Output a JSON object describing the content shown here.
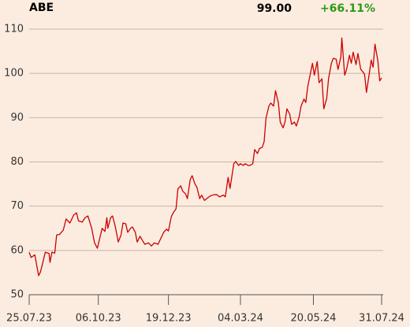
{
  "chart_data": {
    "type": "line",
    "title": "ABE",
    "last_price": "99.00",
    "change": "+66.11%",
    "color": "#cc0000",
    "change_color": "#2a9a14",
    "grid": true,
    "x": [
      "2023-07-25",
      "2023-07-27",
      "2023-07-31",
      "2023-08-02",
      "2023-08-04",
      "2023-08-06",
      "2023-08-09",
      "2023-08-11",
      "2023-08-15",
      "2023-08-16",
      "2023-08-18",
      "2023-08-21",
      "2023-08-23",
      "2023-08-26",
      "2023-08-30",
      "2023-09-02",
      "2023-09-06",
      "2023-09-10",
      "2023-09-13",
      "2023-09-15",
      "2023-09-19",
      "2023-09-22",
      "2023-09-25",
      "2023-09-29",
      "2023-10-02",
      "2023-10-05",
      "2023-10-07",
      "2023-10-10",
      "2023-10-13",
      "2023-10-15",
      "2023-10-16",
      "2023-10-19",
      "2023-10-21",
      "2023-10-24",
      "2023-10-27",
      "2023-10-30",
      "2023-11-01",
      "2023-11-04",
      "2023-11-06",
      "2023-11-09",
      "2023-11-11",
      "2023-11-14",
      "2023-11-16",
      "2023-11-19",
      "2023-11-22",
      "2023-11-24",
      "2023-11-28",
      "2023-12-01",
      "2023-12-04",
      "2023-12-08",
      "2023-12-12",
      "2023-12-14",
      "2023-12-17",
      "2023-12-19",
      "2023-12-22",
      "2023-12-24",
      "2023-12-27",
      "2023-12-29",
      "2024-01-01",
      "2024-01-03",
      "2024-01-06",
      "2024-01-08",
      "2024-01-11",
      "2024-01-13",
      "2024-01-16",
      "2024-01-18",
      "2024-01-21",
      "2024-01-23",
      "2024-01-26",
      "2024-01-29",
      "2024-02-01",
      "2024-02-05",
      "2024-02-08",
      "2024-02-11",
      "2024-02-15",
      "2024-02-17",
      "2024-02-20",
      "2024-02-22",
      "2024-02-26",
      "2024-02-28",
      "2024-03-02",
      "2024-03-04",
      "2024-03-07",
      "2024-03-09",
      "2024-03-12",
      "2024-03-14",
      "2024-03-17",
      "2024-03-19",
      "2024-03-22",
      "2024-03-24",
      "2024-03-27",
      "2024-03-29",
      "2024-03-31",
      "2024-04-03",
      "2024-04-05",
      "2024-04-08",
      "2024-04-10",
      "2024-04-13",
      "2024-04-15",
      "2024-04-18",
      "2024-04-20",
      "2024-04-22",
      "2024-04-25",
      "2024-04-27",
      "2024-04-30",
      "2024-05-02",
      "2024-05-05",
      "2024-05-07",
      "2024-05-10",
      "2024-05-12",
      "2024-05-14",
      "2024-05-16",
      "2024-05-19",
      "2024-05-21",
      "2024-05-24",
      "2024-05-26",
      "2024-05-29",
      "2024-05-31",
      "2024-06-03",
      "2024-06-05",
      "2024-06-08",
      "2024-06-10",
      "2024-06-13",
      "2024-06-15",
      "2024-06-18",
      "2024-06-19",
      "2024-06-22",
      "2024-06-24",
      "2024-06-27",
      "2024-06-29",
      "2024-07-01",
      "2024-07-04",
      "2024-07-06",
      "2024-07-09",
      "2024-07-11",
      "2024-07-13",
      "2024-07-15",
      "2024-07-18",
      "2024-07-20",
      "2024-07-22",
      "2024-07-24",
      "2024-07-27",
      "2024-07-29",
      "2024-07-31"
    ],
    "values": [
      59.6,
      58.4,
      59.0,
      56.6,
      54.3,
      55.2,
      57.8,
      59.6,
      59.3,
      57.3,
      59.6,
      59.4,
      63.5,
      63.6,
      64.6,
      67.1,
      66.2,
      68.0,
      68.5,
      66.7,
      66.4,
      67.4,
      67.8,
      65.0,
      61.7,
      60.5,
      62.3,
      65.0,
      64.3,
      67.4,
      65.0,
      67.4,
      67.8,
      65.3,
      61.9,
      63.5,
      66.2,
      66.0,
      64.1,
      65.0,
      65.3,
      64.1,
      61.9,
      63.2,
      62.1,
      61.4,
      61.7,
      61.0,
      61.7,
      61.4,
      63.2,
      64.1,
      64.8,
      64.4,
      67.6,
      68.5,
      69.4,
      73.9,
      74.6,
      73.4,
      72.8,
      71.7,
      76.0,
      76.9,
      75.0,
      74.3,
      71.7,
      72.5,
      71.3,
      71.8,
      72.3,
      72.6,
      72.6,
      72.1,
      72.5,
      72.1,
      76.5,
      74.0,
      79.6,
      80.1,
      79.2,
      79.6,
      79.2,
      79.6,
      79.2,
      79.2,
      79.6,
      82.8,
      81.9,
      83.0,
      83.3,
      84.6,
      89.9,
      92.6,
      93.3,
      92.6,
      96.1,
      93.4,
      89.0,
      87.7,
      89.0,
      92.0,
      90.8,
      88.5,
      89.0,
      88.1,
      90.2,
      92.6,
      94.2,
      93.4,
      97.0,
      99.1,
      102.3,
      99.6,
      102.7,
      97.9,
      98.8,
      92.0,
      94.3,
      98.8,
      102.3,
      103.4,
      103.2,
      100.9,
      103.8,
      108.0,
      99.6,
      100.9,
      104.1,
      102.3,
      104.8,
      102.0,
      104.5,
      100.9,
      100.4,
      99.8,
      95.7,
      100.0,
      103.0,
      101.4,
      106.6,
      102.9,
      98.3,
      99.0
    ],
    "xlim": [
      "2023-07-25",
      "2024-07-31"
    ],
    "xticks": [
      {
        "value": "2023-07-25",
        "label": "25.07.23"
      },
      {
        "value": "2023-10-06",
        "label": "06.10.23"
      },
      {
        "value": "2023-12-19",
        "label": "19.12.23"
      },
      {
        "value": "2024-03-04",
        "label": "04.03.24"
      },
      {
        "value": "2024-05-20",
        "label": "20.05.24"
      },
      {
        "value": "2024-07-31",
        "label": "31.07.24"
      }
    ],
    "ylim": [
      50,
      112
    ],
    "yticks": [
      50,
      60,
      70,
      80,
      90,
      100,
      110
    ]
  }
}
